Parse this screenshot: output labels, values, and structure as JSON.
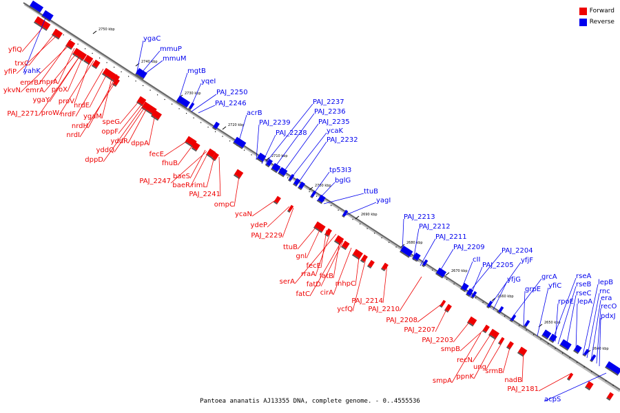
{
  "caption": "Pantoea ananatis AJ13355 DNA, complete genome. - 0..4555536",
  "legend": [
    {
      "label": "Forward",
      "color": "#ee0000"
    },
    {
      "label": "Reverse",
      "color": "#0000ee"
    }
  ],
  "colors": {
    "forward": "#ee0000",
    "reverse": "#0000ee",
    "backbone": "#666666"
  },
  "ticks": [
    "2750 kbp",
    "2740 kbp",
    "2730 kbp",
    "2720 kbp",
    "2710 kbp",
    "2700 kbp",
    "2690 kbp",
    "2680 kbp",
    "2670 kbp",
    "2660 kbp",
    "2650 kbp",
    "2640 kbp"
  ],
  "genes": {
    "forward": [
      "yfiQ",
      "trxC",
      "yfiP",
      "emrB",
      "mprA",
      "ykvN",
      "emrA",
      "proX",
      "ygaY",
      "proV",
      "PAJ_2271",
      "proW",
      "nrdE",
      "nrdF",
      "ygaM",
      "nrdH",
      "nrdI",
      "speG",
      "oppF",
      "yddR",
      "dppA",
      "yddQ",
      "dppD",
      "fecE",
      "fhuB",
      "baeS",
      "PAJ_2247",
      "baeR",
      "rimL",
      "PAJ_2241",
      "ompC",
      "ycaN",
      "ydeP",
      "PAJ_2229",
      "ttuB",
      "gnl",
      "fecE",
      "rraA",
      "fatB",
      "serA",
      "fatD",
      "fatC",
      "mhpC",
      "cirA",
      "PAJ_2214",
      "ycfQ",
      "PAJ_2210",
      "PAJ_2208",
      "PAJ_2207",
      "PAJ_2203",
      "smpB",
      "recN",
      "ung",
      "smpA",
      "ppnK",
      "srmB",
      "nadB",
      "PAJ_2181"
    ],
    "reverse": [
      "ygaC",
      "mmuP",
      "yahK",
      "mmuM",
      "mgtB",
      "yqeI",
      "PAJ_2250",
      "PAJ_2246",
      "acrB",
      "PAJ_2237",
      "PAJ_2236",
      "PAJ_2239",
      "PAJ_2235",
      "PAJ_2238",
      "ycaK",
      "PAJ_2232",
      "tp53I3",
      "bglG",
      "ttuB",
      "yagI",
      "PAJ_2213",
      "PAJ_2212",
      "PAJ_2211",
      "PAJ_2209",
      "cII",
      "PAJ_2204",
      "PAJ_2205",
      "yfjF",
      "yfjG",
      "grcA",
      "grpE",
      "yfiC",
      "rseA",
      "rseB",
      "rpoE",
      "rseC",
      "lepA",
      "lepB",
      "rnc",
      "era",
      "recO",
      "pdxJ",
      "acpS"
    ]
  }
}
